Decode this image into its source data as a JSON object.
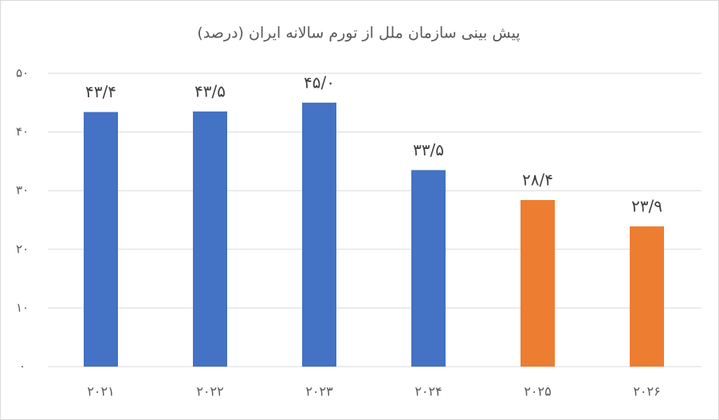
{
  "chart_data": {
    "type": "bar",
    "title": "پیش بینی سازمان ملل از تورم سالانه ایران (درصد)",
    "categories": [
      "۲۰۲۱",
      "۲۰۲۲",
      "۲۰۲۳",
      "۲۰۲۴",
      "۲۰۲۵",
      "۲۰۲۶"
    ],
    "values": [
      43.4,
      43.5,
      45.0,
      33.5,
      28.4,
      23.9
    ],
    "value_labels": [
      "۴۳/۴",
      "۴۳/۵",
      "۴۵/۰",
      "۳۳/۵",
      "۲۸/۴",
      "۲۳/۹"
    ],
    "colors": [
      "#4472c4",
      "#4472c4",
      "#4472c4",
      "#4472c4",
      "#ed7d31",
      "#ed7d31"
    ],
    "ylim": [
      0,
      50
    ],
    "yticks": [
      {
        "value": 0,
        "label": "۰"
      },
      {
        "value": 10,
        "label": "۱۰"
      },
      {
        "value": 20,
        "label": "۲۰"
      },
      {
        "value": 30,
        "label": "۳۰"
      },
      {
        "value": 40,
        "label": "۴۰"
      },
      {
        "value": 50,
        "label": "۵۰"
      }
    ],
    "grid": true
  }
}
